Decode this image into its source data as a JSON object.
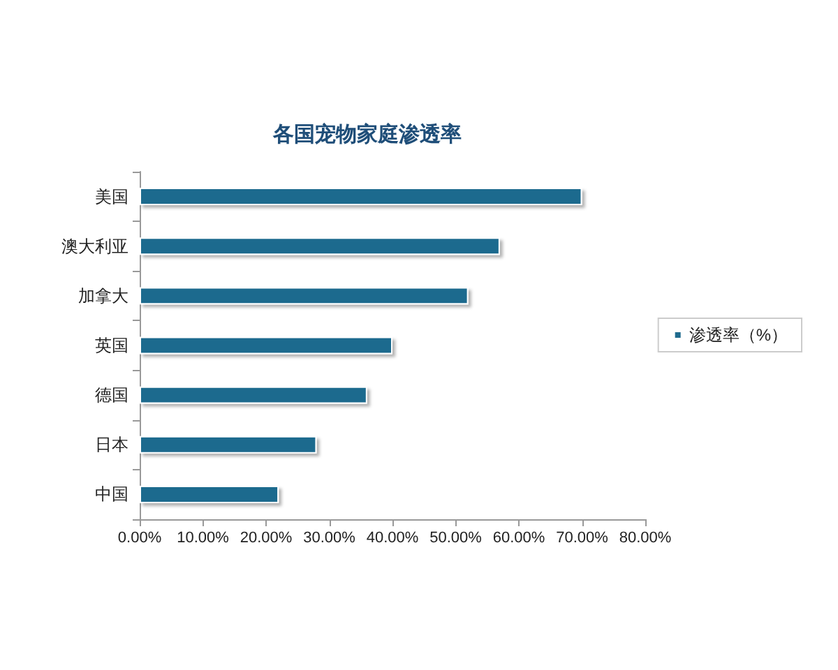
{
  "chart_data": {
    "type": "bar",
    "orientation": "horizontal",
    "title": "各国宠物家庭渗透率",
    "categories": [
      "美国",
      "澳大利亚",
      "加拿大",
      "英国",
      "德国",
      "日本",
      "中国"
    ],
    "series": [
      {
        "name": "渗透率（%）",
        "color": "#1f6b8e",
        "values": [
          70,
          57,
          52,
          40,
          36,
          28,
          22
        ]
      }
    ],
    "xlim": [
      0,
      80
    ],
    "xticks": [
      {
        "value": 0,
        "label": "0.00%"
      },
      {
        "value": 10,
        "label": "10.00%"
      },
      {
        "value": 20,
        "label": "20.00%"
      },
      {
        "value": 30,
        "label": "30.00%"
      },
      {
        "value": 40,
        "label": "40.00%"
      },
      {
        "value": 50,
        "label": "50.00%"
      },
      {
        "value": 60,
        "label": "60.00%"
      },
      {
        "value": 70,
        "label": "70.00%"
      },
      {
        "value": 80,
        "label": "80.00%"
      }
    ],
    "grid": false,
    "legend": "right"
  }
}
